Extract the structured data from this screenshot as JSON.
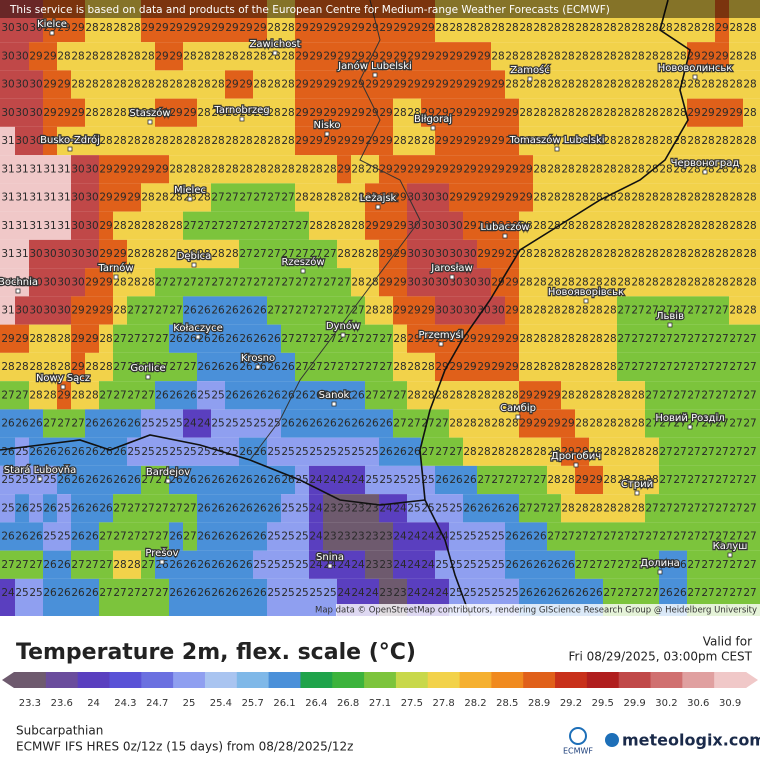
{
  "notice": "This service is based on data and products of the European Centre for Medium-range Weather Forecasts (ECMWF)",
  "attribution": "Map data © OpenStreetMap contributors, rendering GIScience Research Group @ Heidelberg University",
  "legend": {
    "title": "Temperature 2m, flex. scale (°C)",
    "valid_label": "Valid for",
    "valid_time": "Fri 08/29/2025, 03:00pm CEST"
  },
  "footer": {
    "region": "Subcarpathian",
    "model": "ECMWF IFS HRES 0z/12z (15 days) from  08/28/2025/12z",
    "logo_ecmwf": "ECMWF",
    "logo_site": "meteologix.com"
  },
  "colorbar": {
    "ticks": [
      23.3,
      23.6,
      24,
      24.3,
      24.7,
      25,
      25.4,
      25.7,
      26.1,
      26.4,
      26.8,
      27.1,
      27.5,
      27.8,
      28.2,
      28.5,
      28.9,
      29.2,
      29.5,
      29.9,
      30.2,
      30.6,
      30.9
    ],
    "colors": [
      "#6e5a6e",
      "#6a4c9c",
      "#5a3fbf",
      "#5a52d6",
      "#6b70e0",
      "#8f9ff0",
      "#a9c4f0",
      "#7fb8e8",
      "#4a90d9",
      "#1fa34a",
      "#3cb33c",
      "#7cc43c",
      "#c8d84a",
      "#f2d24a",
      "#f5b030",
      "#f08a1f",
      "#e0601a",
      "#c8301a",
      "#b01e1e",
      "#c04848",
      "#d07070",
      "#e0a0a0",
      "#f0c8c8"
    ]
  },
  "cities": [
    "Kielce",
    "Zawichost",
    "Janów Lubelski",
    "Zamość",
    "Нововолинськ",
    "Staszów",
    "Tarnobrzeg",
    "Nisko",
    "Biłgoraj",
    "Busko-Zdrój",
    "Tomaszów Lubelski",
    "Червоноград",
    "Mielec",
    "Leżajsk",
    "Lubaczów",
    "Dębica",
    "Rzeszów",
    "Tarnów",
    "Jarosław",
    "Bochnia",
    "Новояворівськ",
    "Львів",
    "Kołaczyce",
    "Dynów",
    "Przemyśl",
    "Krosno",
    "Gorlice",
    "Nowy Sącz",
    "Sanok",
    "Самбір",
    "Новий Розділ",
    "Stará Ľubovňa",
    "Bardejov",
    "Дрогобич",
    "Стрий",
    "Калуш",
    "Prešov",
    "Snina",
    "Долина"
  ],
  "grid": {
    "rows": [
      [
        30,
        30,
        30,
        29,
        29,
        29,
        28,
        28,
        28,
        28,
        29,
        29,
        29,
        29,
        29,
        29,
        29,
        29,
        29,
        28,
        28,
        29,
        29,
        29,
        29,
        29,
        29,
        29,
        29,
        29,
        29,
        28,
        28,
        28,
        28,
        28,
        28,
        28,
        28,
        28,
        28,
        28,
        28,
        28,
        28,
        28,
        28,
        28,
        28,
        28,
        28,
        29,
        28,
        28
      ],
      [
        30,
        30,
        29,
        29,
        28,
        28,
        28,
        28,
        28,
        28,
        28,
        29,
        29,
        28,
        28,
        28,
        28,
        28,
        28,
        28,
        28,
        29,
        29,
        29,
        29,
        29,
        29,
        29,
        29,
        29,
        29,
        29,
        29,
        29,
        29,
        28,
        28,
        28,
        28,
        28,
        28,
        28,
        28,
        28,
        28,
        28,
        28,
        28,
        28,
        29,
        29,
        29,
        28,
        28
      ],
      [
        30,
        30,
        30,
        29,
        29,
        28,
        28,
        28,
        28,
        28,
        28,
        28,
        28,
        28,
        28,
        28,
        29,
        29,
        28,
        28,
        28,
        29,
        29,
        29,
        29,
        29,
        29,
        29,
        29,
        29,
        29,
        29,
        29,
        29,
        29,
        29,
        28,
        28,
        28,
        28,
        28,
        28,
        28,
        28,
        28,
        28,
        28,
        28,
        28,
        28,
        28,
        28,
        28,
        28
      ],
      [
        30,
        30,
        30,
        29,
        29,
        29,
        28,
        28,
        28,
        28,
        28,
        29,
        29,
        29,
        28,
        28,
        28,
        28,
        28,
        28,
        28,
        29,
        29,
        29,
        29,
        29,
        29,
        29,
        28,
        28,
        29,
        29,
        29,
        29,
        29,
        29,
        29,
        28,
        28,
        28,
        28,
        28,
        28,
        28,
        28,
        28,
        28,
        28,
        28,
        29,
        29,
        29,
        29,
        28
      ],
      [
        31,
        30,
        30,
        29,
        28,
        28,
        28,
        28,
        28,
        28,
        28,
        28,
        28,
        28,
        28,
        28,
        28,
        28,
        28,
        28,
        28,
        29,
        29,
        29,
        29,
        29,
        29,
        29,
        28,
        28,
        28,
        29,
        29,
        29,
        29,
        29,
        29,
        28,
        28,
        28,
        28,
        28,
        28,
        28,
        28,
        28,
        28,
        28,
        28,
        28,
        28,
        28,
        28,
        28
      ],
      [
        31,
        31,
        31,
        31,
        31,
        30,
        30,
        29,
        29,
        29,
        29,
        29,
        28,
        28,
        28,
        28,
        28,
        28,
        28,
        28,
        28,
        28,
        28,
        28,
        29,
        28,
        28,
        29,
        29,
        29,
        29,
        29,
        29,
        29,
        29,
        29,
        29,
        29,
        28,
        28,
        28,
        28,
        28,
        28,
        28,
        28,
        28,
        28,
        28,
        28,
        28,
        28,
        28,
        28
      ],
      [
        31,
        31,
        31,
        31,
        31,
        30,
        30,
        29,
        29,
        29,
        28,
        28,
        28,
        28,
        28,
        27,
        27,
        27,
        27,
        27,
        27,
        28,
        28,
        28,
        28,
        28,
        29,
        29,
        29,
        30,
        30,
        30,
        29,
        29,
        29,
        29,
        29,
        29,
        28,
        28,
        28,
        28,
        28,
        28,
        28,
        28,
        28,
        28,
        28,
        28,
        28,
        28,
        28,
        28
      ],
      [
        31,
        31,
        31,
        31,
        31,
        30,
        30,
        29,
        28,
        28,
        28,
        28,
        28,
        27,
        27,
        27,
        27,
        27,
        27,
        27,
        27,
        27,
        28,
        28,
        28,
        28,
        29,
        29,
        29,
        30,
        30,
        30,
        30,
        29,
        29,
        29,
        29,
        28,
        28,
        28,
        28,
        28,
        28,
        28,
        28,
        28,
        28,
        28,
        28,
        28,
        28,
        28,
        28,
        28
      ],
      [
        31,
        31,
        30,
        30,
        30,
        30,
        30,
        29,
        29,
        28,
        28,
        28,
        28,
        28,
        28,
        28,
        28,
        27,
        27,
        27,
        27,
        27,
        27,
        27,
        28,
        28,
        28,
        29,
        29,
        30,
        30,
        30,
        30,
        30,
        29,
        29,
        29,
        28,
        28,
        28,
        28,
        28,
        28,
        28,
        28,
        28,
        28,
        28,
        28,
        28,
        28,
        28,
        28,
        28
      ],
      [
        31,
        31,
        30,
        30,
        30,
        30,
        29,
        29,
        28,
        28,
        28,
        27,
        27,
        27,
        27,
        27,
        27,
        27,
        27,
        27,
        27,
        27,
        27,
        27,
        27,
        28,
        28,
        29,
        29,
        30,
        30,
        30,
        30,
        30,
        30,
        29,
        29,
        28,
        28,
        28,
        28,
        28,
        28,
        28,
        28,
        28,
        28,
        28,
        28,
        28,
        28,
        28,
        28,
        28
      ],
      [
        31,
        30,
        30,
        30,
        30,
        29,
        29,
        29,
        28,
        27,
        27,
        27,
        27,
        26,
        26,
        26,
        26,
        26,
        26,
        27,
        27,
        27,
        27,
        27,
        27,
        27,
        28,
        28,
        29,
        29,
        29,
        30,
        30,
        30,
        30,
        30,
        29,
        28,
        28,
        28,
        28,
        28,
        28,
        28,
        27,
        27,
        27,
        27,
        27,
        27,
        27,
        27,
        28,
        28
      ],
      [
        29,
        29,
        28,
        28,
        28,
        29,
        29,
        28,
        27,
        27,
        27,
        27,
        26,
        26,
        26,
        26,
        26,
        26,
        26,
        26,
        27,
        27,
        27,
        27,
        27,
        27,
        27,
        27,
        28,
        29,
        29,
        29,
        29,
        29,
        29,
        29,
        29,
        28,
        28,
        28,
        28,
        28,
        28,
        28,
        27,
        27,
        27,
        27,
        27,
        27,
        27,
        27,
        27,
        27
      ],
      [
        28,
        28,
        28,
        28,
        28,
        29,
        28,
        28,
        27,
        27,
        27,
        27,
        27,
        27,
        26,
        26,
        26,
        26,
        26,
        26,
        26,
        27,
        27,
        27,
        27,
        27,
        27,
        27,
        28,
        28,
        28,
        29,
        29,
        29,
        29,
        29,
        29,
        28,
        28,
        28,
        28,
        28,
        28,
        28,
        27,
        27,
        27,
        27,
        27,
        27,
        27,
        27,
        27,
        27
      ],
      [
        27,
        27,
        28,
        28,
        29,
        28,
        28,
        27,
        27,
        27,
        27,
        26,
        26,
        26,
        25,
        25,
        26,
        26,
        26,
        26,
        26,
        26,
        26,
        26,
        26,
        26,
        27,
        27,
        27,
        28,
        28,
        28,
        28,
        28,
        28,
        28,
        28,
        29,
        29,
        29,
        28,
        28,
        28,
        28,
        28,
        28,
        27,
        27,
        27,
        27,
        27,
        27,
        27,
        27
      ],
      [
        26,
        26,
        26,
        27,
        27,
        27,
        26,
        26,
        26,
        26,
        25,
        25,
        25,
        24,
        24,
        25,
        25,
        25,
        25,
        25,
        26,
        26,
        26,
        26,
        26,
        26,
        26,
        26,
        27,
        27,
        27,
        27,
        28,
        28,
        28,
        28,
        28,
        29,
        29,
        29,
        29,
        28,
        28,
        28,
        28,
        28,
        27,
        27,
        27,
        27,
        27,
        27,
        27,
        27
      ],
      [
        26,
        25,
        26,
        26,
        26,
        26,
        26,
        26,
        26,
        25,
        25,
        25,
        25,
        25,
        25,
        25,
        25,
        26,
        26,
        25,
        25,
        25,
        25,
        25,
        25,
        25,
        25,
        26,
        26,
        26,
        27,
        27,
        27,
        28,
        28,
        28,
        28,
        28,
        28,
        28,
        29,
        29,
        28,
        28,
        28,
        28,
        28,
        27,
        27,
        27,
        27,
        27,
        27,
        27
      ],
      [
        25,
        25,
        25,
        25,
        26,
        26,
        26,
        26,
        26,
        26,
        27,
        27,
        26,
        26,
        26,
        26,
        26,
        26,
        26,
        26,
        26,
        25,
        24,
        24,
        24,
        24,
        25,
        25,
        25,
        25,
        25,
        26,
        26,
        26,
        27,
        27,
        27,
        27,
        27,
        28,
        28,
        29,
        29,
        28,
        28,
        28,
        28,
        27,
        27,
        27,
        27,
        27,
        27,
        27
      ],
      [
        25,
        26,
        25,
        26,
        25,
        26,
        26,
        26,
        27,
        27,
        27,
        27,
        27,
        27,
        26,
        26,
        26,
        26,
        26,
        26,
        25,
        25,
        24,
        23,
        23,
        23,
        23,
        24,
        24,
        25,
        25,
        25,
        25,
        26,
        26,
        26,
        26,
        27,
        27,
        27,
        28,
        28,
        28,
        28,
        28,
        28,
        27,
        27,
        27,
        27,
        27,
        27,
        27,
        27
      ],
      [
        26,
        26,
        26,
        25,
        25,
        26,
        26,
        27,
        27,
        27,
        27,
        27,
        26,
        27,
        26,
        26,
        26,
        26,
        26,
        25,
        25,
        25,
        24,
        23,
        23,
        23,
        23,
        23,
        24,
        24,
        24,
        24,
        25,
        25,
        25,
        25,
        26,
        26,
        26,
        27,
        27,
        27,
        27,
        27,
        27,
        27,
        27,
        27,
        27,
        27,
        27,
        27,
        27,
        27
      ],
      [
        27,
        27,
        27,
        26,
        26,
        27,
        27,
        27,
        28,
        28,
        27,
        26,
        26,
        26,
        26,
        26,
        26,
        26,
        25,
        25,
        25,
        25,
        24,
        24,
        24,
        24,
        23,
        23,
        24,
        24,
        24,
        25,
        25,
        25,
        25,
        25,
        26,
        26,
        26,
        26,
        26,
        27,
        27,
        27,
        27,
        27,
        27,
        26,
        26,
        27,
        27,
        27,
        27,
        27
      ],
      [
        24,
        25,
        25,
        26,
        26,
        26,
        26,
        27,
        27,
        27,
        27,
        27,
        26,
        26,
        26,
        26,
        26,
        26,
        26,
        25,
        25,
        25,
        25,
        25,
        24,
        24,
        24,
        23,
        23,
        24,
        24,
        24,
        25,
        25,
        25,
        25,
        25,
        26,
        26,
        26,
        26,
        26,
        26,
        27,
        27,
        27,
        27,
        26,
        26,
        27,
        27,
        27,
        27,
        27
      ]
    ]
  }
}
